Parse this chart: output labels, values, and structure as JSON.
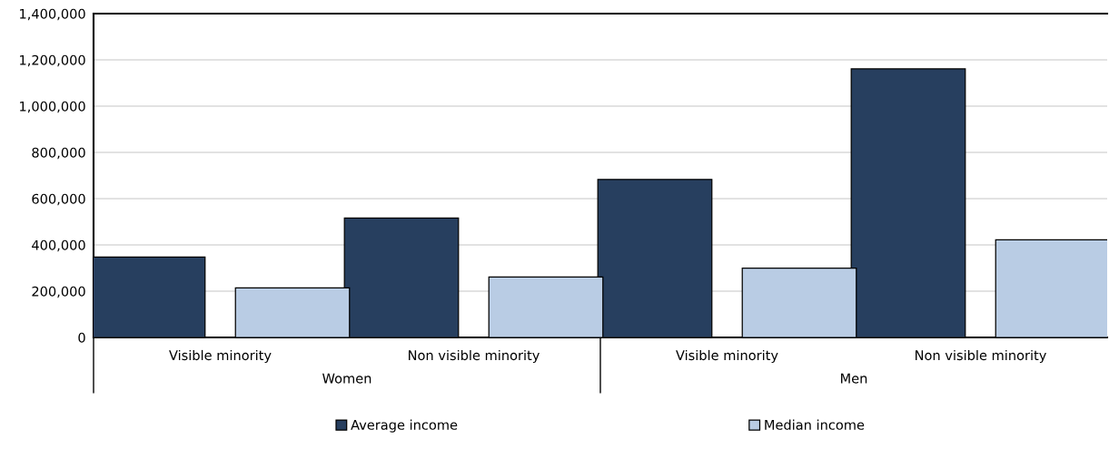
{
  "chart_data": {
    "type": "bar",
    "categories": [
      "Visible minority",
      "Non visible minority",
      "Visible minority",
      "Non visible minority"
    ],
    "series": [
      {
        "name": "Average income",
        "color": "#273f5f",
        "values": [
          348000,
          516000,
          683000,
          1161000
        ]
      },
      {
        "name": "Median income",
        "color": "#b9cce4",
        "values": [
          214000,
          261000,
          300000,
          422000
        ]
      }
    ],
    "annotations": [
      "Women",
      "Men"
    ],
    "ylim": [
      0,
      1400000
    ],
    "yticks": [
      {
        "value": 0,
        "label": "0"
      },
      {
        "value": 200000,
        "label": "200,000"
      },
      {
        "value": 400000,
        "label": "400,000"
      },
      {
        "value": 600000,
        "label": "600,000"
      },
      {
        "value": 800000,
        "label": "800,000"
      },
      {
        "value": 1000000,
        "label": "1,000,000"
      },
      {
        "value": 1200000,
        "label": "1,200,000"
      },
      {
        "value": 1400000,
        "label": "1,400,000"
      }
    ],
    "grid": "y",
    "legend": "bottom"
  }
}
